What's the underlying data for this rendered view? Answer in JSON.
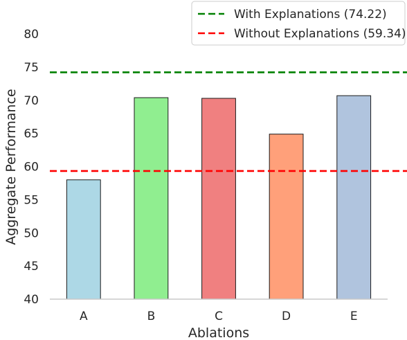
{
  "chart_data": {
    "type": "bar",
    "title": "",
    "xlabel": "Ablations",
    "ylabel": "Aggregate Performance",
    "categories": [
      "A",
      "B",
      "C",
      "D",
      "E"
    ],
    "values": [
      58.0,
      70.4,
      70.3,
      64.9,
      70.7
    ],
    "bar_colors": [
      "#add8e6",
      "#90ee90",
      "#f08080",
      "#ffa07a",
      "#b0c4de"
    ],
    "ylim": [
      40,
      82
    ],
    "yticks": [
      40,
      45,
      50,
      55,
      60,
      65,
      70,
      75,
      80
    ],
    "grid": false,
    "legend_position": "top-right",
    "reference_lines": [
      {
        "label": "With Explanations (74.22)",
        "value": 74.22,
        "color": "#008000",
        "style": "dashed"
      },
      {
        "label": "Without Explanations (59.34)",
        "value": 59.34,
        "color": "#ff0000",
        "style": "dashed"
      }
    ]
  }
}
